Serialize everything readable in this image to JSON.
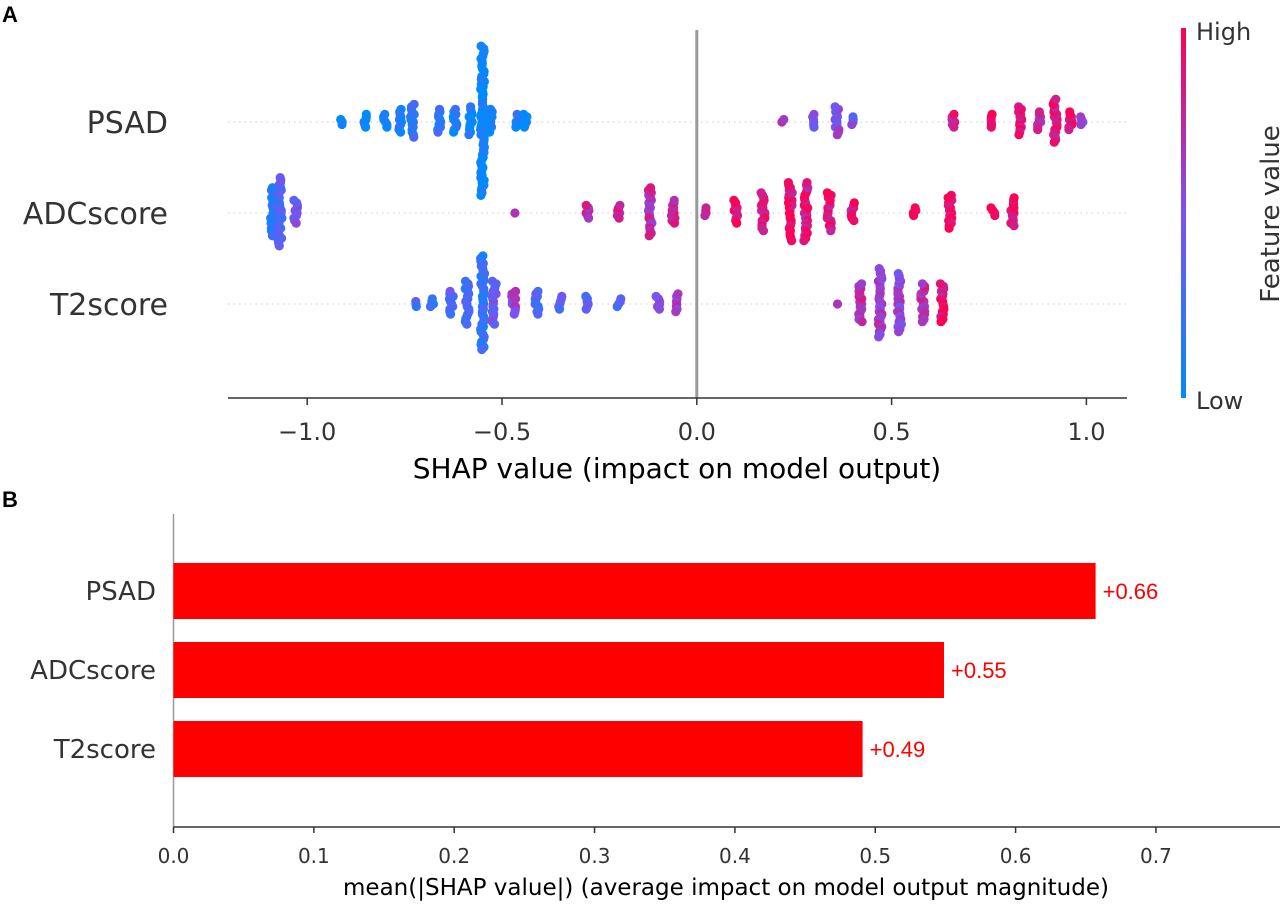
{
  "panels": {
    "a_label": "A",
    "b_label": "B"
  },
  "colors": {
    "low": "#008bfb",
    "high": "#ff0052",
    "bar": "#ff0000",
    "bar_label": "#ff0000",
    "zero_line": "#999999"
  },
  "chart_data": [
    {
      "type": "scatter",
      "subtype": "shap-beeswarm",
      "title": "",
      "xlabel": "SHAP value (impact on model output)",
      "ylabel": "",
      "xlim": [
        -1.2,
        1.1
      ],
      "xticks": [
        -1.0,
        -0.5,
        0.0,
        0.5,
        1.0
      ],
      "xtick_labels": [
        "−1.0",
        "−0.5",
        "0.0",
        "0.5",
        "1.0"
      ],
      "features": [
        "PSAD",
        "ADCscore",
        "T2score"
      ],
      "colorbar": {
        "title": "Feature value",
        "high_label": "High",
        "low_label": "Low"
      },
      "series": [
        {
          "name": "PSAD",
          "clusters": [
            {
              "x": -0.91,
              "n": 3,
              "value": 0.05
            },
            {
              "x": -0.85,
              "n": 6,
              "value": 0.05
            },
            {
              "x": -0.8,
              "n": 6,
              "value": 0.08
            },
            {
              "x": -0.76,
              "n": 10,
              "value": 0.12
            },
            {
              "x": -0.73,
              "n": 14,
              "value": 0.18
            },
            {
              "x": -0.66,
              "n": 10,
              "value": 0.15
            },
            {
              "x": -0.62,
              "n": 10,
              "value": 0.12
            },
            {
              "x": -0.58,
              "n": 12,
              "value": 0.1
            },
            {
              "x": -0.55,
              "n": 60,
              "value": 0.03
            },
            {
              "x": -0.53,
              "n": 10,
              "value": 0.05
            },
            {
              "x": -0.46,
              "n": 6,
              "value": 0.12
            },
            {
              "x": -0.44,
              "n": 6,
              "value": 0.05
            },
            {
              "x": 0.22,
              "n": 2,
              "value": 0.6
            },
            {
              "x": 0.3,
              "n": 6,
              "value": 0.5
            },
            {
              "x": 0.36,
              "n": 12,
              "value": 0.52
            },
            {
              "x": 0.4,
              "n": 4,
              "value": 0.45
            },
            {
              "x": 0.66,
              "n": 6,
              "value": 0.8
            },
            {
              "x": 0.76,
              "n": 6,
              "value": 0.95
            },
            {
              "x": 0.83,
              "n": 12,
              "value": 0.88
            },
            {
              "x": 0.88,
              "n": 8,
              "value": 0.75
            },
            {
              "x": 0.92,
              "n": 18,
              "value": 0.85
            },
            {
              "x": 0.96,
              "n": 8,
              "value": 0.95
            },
            {
              "x": 0.99,
              "n": 4,
              "value": 0.6
            }
          ]
        },
        {
          "name": "ADCscore",
          "clusters": [
            {
              "x": -1.09,
              "n": 20,
              "value": 0.15
            },
            {
              "x": -1.07,
              "n": 28,
              "value": 0.35
            },
            {
              "x": -1.03,
              "n": 10,
              "value": 0.45
            },
            {
              "x": -0.47,
              "n": 1,
              "value": 0.8
            },
            {
              "x": -0.28,
              "n": 6,
              "value": 0.75
            },
            {
              "x": -0.2,
              "n": 6,
              "value": 0.8
            },
            {
              "x": -0.12,
              "n": 20,
              "value": 0.72
            },
            {
              "x": -0.06,
              "n": 10,
              "value": 0.8
            },
            {
              "x": 0.02,
              "n": 4,
              "value": 0.85
            },
            {
              "x": 0.1,
              "n": 10,
              "value": 0.88
            },
            {
              "x": 0.17,
              "n": 16,
              "value": 0.9
            },
            {
              "x": 0.24,
              "n": 24,
              "value": 0.92
            },
            {
              "x": 0.28,
              "n": 24,
              "value": 0.85
            },
            {
              "x": 0.34,
              "n": 16,
              "value": 0.9
            },
            {
              "x": 0.4,
              "n": 8,
              "value": 0.85
            },
            {
              "x": 0.56,
              "n": 4,
              "value": 0.95
            },
            {
              "x": 0.65,
              "n": 14,
              "value": 0.95
            },
            {
              "x": 0.76,
              "n": 4,
              "value": 0.95
            },
            {
              "x": 0.81,
              "n": 12,
              "value": 0.92
            }
          ]
        },
        {
          "name": "T2score",
          "clusters": [
            {
              "x": -0.72,
              "n": 3,
              "value": 0.3
            },
            {
              "x": -0.68,
              "n": 4,
              "value": 0.15
            },
            {
              "x": -0.63,
              "n": 10,
              "value": 0.35
            },
            {
              "x": -0.59,
              "n": 18,
              "value": 0.3
            },
            {
              "x": -0.55,
              "n": 38,
              "value": 0.2
            },
            {
              "x": -0.52,
              "n": 18,
              "value": 0.45
            },
            {
              "x": -0.47,
              "n": 10,
              "value": 0.6
            },
            {
              "x": -0.41,
              "n": 10,
              "value": 0.35
            },
            {
              "x": -0.35,
              "n": 6,
              "value": 0.4
            },
            {
              "x": -0.28,
              "n": 6,
              "value": 0.4
            },
            {
              "x": -0.2,
              "n": 4,
              "value": 0.4
            },
            {
              "x": -0.1,
              "n": 6,
              "value": 0.6
            },
            {
              "x": -0.05,
              "n": 8,
              "value": 0.65
            },
            {
              "x": 0.36,
              "n": 1,
              "value": 0.75
            },
            {
              "x": 0.42,
              "n": 16,
              "value": 0.7
            },
            {
              "x": 0.47,
              "n": 28,
              "value": 0.65
            },
            {
              "x": 0.52,
              "n": 24,
              "value": 0.6
            },
            {
              "x": 0.58,
              "n": 16,
              "value": 0.75
            },
            {
              "x": 0.63,
              "n": 16,
              "value": 0.9
            }
          ]
        }
      ]
    },
    {
      "type": "bar",
      "orientation": "horizontal",
      "title": "",
      "xlabel": "mean(|SHAP value|) (average impact on model output magnitude)",
      "ylabel": "",
      "xlim": [
        0,
        0.79
      ],
      "xticks": [
        0.0,
        0.1,
        0.2,
        0.3,
        0.4,
        0.5,
        0.6,
        0.7
      ],
      "xtick_labels": [
        "0.0",
        "0.1",
        "0.2",
        "0.3",
        "0.4",
        "0.5",
        "0.6",
        "0.7"
      ],
      "categories": [
        "PSAD",
        "ADCscore",
        "T2score"
      ],
      "values": [
        0.657,
        0.549,
        0.491
      ],
      "value_labels": [
        "+0.66",
        "+0.55",
        "+0.49"
      ]
    }
  ]
}
